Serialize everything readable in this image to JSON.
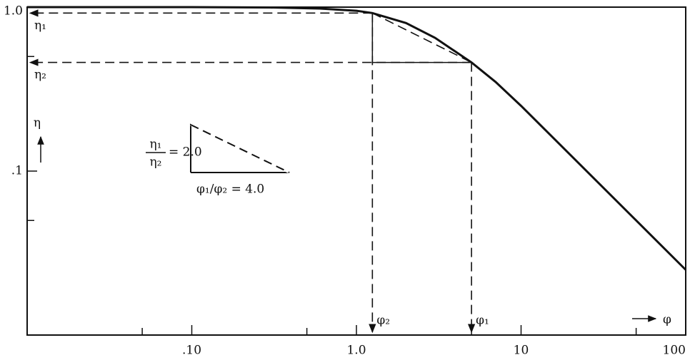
{
  "chart_data": {
    "type": "line",
    "x": [
      0.01,
      0.1,
      0.3,
      0.6,
      1.0,
      1.25,
      2,
      3,
      5,
      7,
      10,
      20,
      50,
      100
    ],
    "series": [
      {
        "color": "#111111",
        "values": [
          1.0,
          1.0,
          0.995,
          0.98,
          0.95,
          0.92,
          0.8,
          0.65,
          0.46,
          0.35,
          0.25,
          0.125,
          0.05,
          0.025
        ]
      }
    ],
    "log_x": true,
    "log_y": true,
    "xlim": [
      0.01,
      100
    ],
    "ylim": [
      0.01,
      1.0
    ],
    "xticks": [
      {
        "value": 0.1,
        "label": ".10"
      },
      {
        "value": 1,
        "label": "1.0"
      },
      10,
      100
    ],
    "minor_xticks": [
      0.05,
      0.5,
      5,
      50
    ],
    "yticks": [
      {
        "value": 1,
        "label": "1.0"
      },
      {
        "value": 0.1,
        "label": ".1"
      }
    ],
    "minor_yticks": [
      0.5,
      0.05
    ],
    "ylabel": "η",
    "xlabel": "φ",
    "markers": [
      {
        "x": 1.25,
        "y": 0.92,
        "x_label": "φ₂",
        "y_label": "η₁"
      },
      {
        "x": 5,
        "y": 0.46,
        "x_label": "φ₁",
        "y_label": "η₂"
      }
    ],
    "inset": {
      "numerator": "η₁",
      "denominator": "η₂",
      "eta_ratio": "= 2.0",
      "phi_ratio": "φ₁/φ₂ = 4.0"
    }
  }
}
